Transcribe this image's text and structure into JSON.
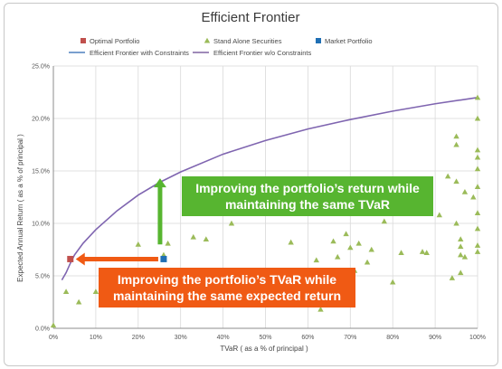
{
  "chart_data": {
    "type": "scatter",
    "title": "Efficient Frontier",
    "xlabel": "TVaR ( as a % of principal )",
    "ylabel": "Expected Annual Return ( as a % of principal )",
    "xlim": [
      0,
      100
    ],
    "ylim": [
      0,
      25
    ],
    "x_ticks": [
      "0%",
      "10%",
      "20%",
      "30%",
      "40%",
      "50%",
      "60%",
      "70%",
      "80%",
      "90%",
      "100%"
    ],
    "y_ticks": [
      "0.0%",
      "5.0%",
      "10.0%",
      "15.0%",
      "20.0%",
      "25.0%"
    ],
    "grid": true,
    "legend_position": "top",
    "legend": [
      {
        "label": "Optimal Portfolio",
        "marker": "square",
        "color": "#c0504d"
      },
      {
        "label": "Stand Alone Securities",
        "marker": "triangle",
        "color": "#9bbb59"
      },
      {
        "label": "Market Portfolio",
        "marker": "square",
        "color": "#1f6fb4"
      },
      {
        "label": "Efficient Frontier with Constraints",
        "marker": "line",
        "color": "#4f81bd"
      },
      {
        "label": "Efficient Frontier w/o Constraints",
        "marker": "line",
        "color": "#8064a2"
      }
    ],
    "series": [
      {
        "name": "Efficient Frontier w/o Constraints",
        "type": "line",
        "color": "#7f65b0",
        "x": [
          2,
          3,
          4,
          5,
          7,
          10,
          15,
          20,
          25,
          27,
          30,
          40,
          50,
          60,
          70,
          80,
          90,
          100
        ],
        "y": [
          4.6,
          5.3,
          6.2,
          7.0,
          8.1,
          9.4,
          11.2,
          12.7,
          13.9,
          14.3,
          14.9,
          16.6,
          17.9,
          19.0,
          19.9,
          20.7,
          21.4,
          22.0
        ]
      },
      {
        "name": "Stand Alone Securities",
        "type": "scatter",
        "color": "#9bbb59",
        "x": [
          0,
          3,
          6,
          10,
          13,
          15,
          19,
          20,
          20,
          24,
          26,
          27,
          28,
          33,
          34,
          36,
          42,
          46,
          54,
          56,
          58,
          62,
          63,
          64,
          66,
          67,
          69,
          70,
          71,
          72,
          74,
          75,
          78,
          80,
          82,
          87,
          88,
          91,
          93,
          94,
          95,
          95,
          95,
          95,
          96,
          96,
          96,
          96,
          97,
          97,
          99,
          100,
          100,
          100,
          100,
          100,
          100,
          100,
          100,
          100,
          100
        ],
        "y": [
          0.3,
          3.5,
          2.5,
          3.5,
          5.5,
          2.2,
          2.5,
          2.3,
          8.0,
          3.0,
          7.0,
          8.1,
          2.5,
          8.7,
          4.5,
          8.5,
          10.0,
          5.5,
          3.5,
          8.2,
          2.2,
          6.5,
          1.8,
          2.5,
          8.3,
          6.8,
          9.0,
          7.7,
          5.5,
          8.1,
          6.3,
          7.5,
          10.2,
          4.4,
          7.2,
          7.3,
          7.2,
          10.8,
          14.5,
          4.8,
          17.5,
          18.3,
          14.0,
          10.0,
          8.5,
          7.8,
          7.0,
          5.3,
          13.0,
          6.8,
          12.5,
          22.0,
          20.0,
          17.0,
          16.3,
          15.2,
          13.5,
          11.0,
          9.5,
          7.9,
          7.3
        ]
      },
      {
        "name": "Optimal Portfolio",
        "type": "point",
        "color": "#c0504d",
        "x": [
          4
        ],
        "y": [
          6.6
        ]
      },
      {
        "name": "Market Portfolio",
        "type": "point",
        "color": "#1f6fb4",
        "x": [
          26
        ],
        "y": [
          6.6
        ]
      }
    ],
    "annotations": [
      {
        "text": "Improving the portfolio’s return while maintaining the same TVaR",
        "color": "#57b530",
        "arrow": {
          "from": [
            26,
            8
          ],
          "to": [
            26,
            14.3
          ]
        }
      },
      {
        "text": "Improving the portfolio’s TVaR while maintaining the same expected return",
        "color": "#f05a14",
        "arrow": {
          "from": [
            26,
            6.6
          ],
          "to": [
            4,
            6.6
          ]
        }
      }
    ]
  }
}
